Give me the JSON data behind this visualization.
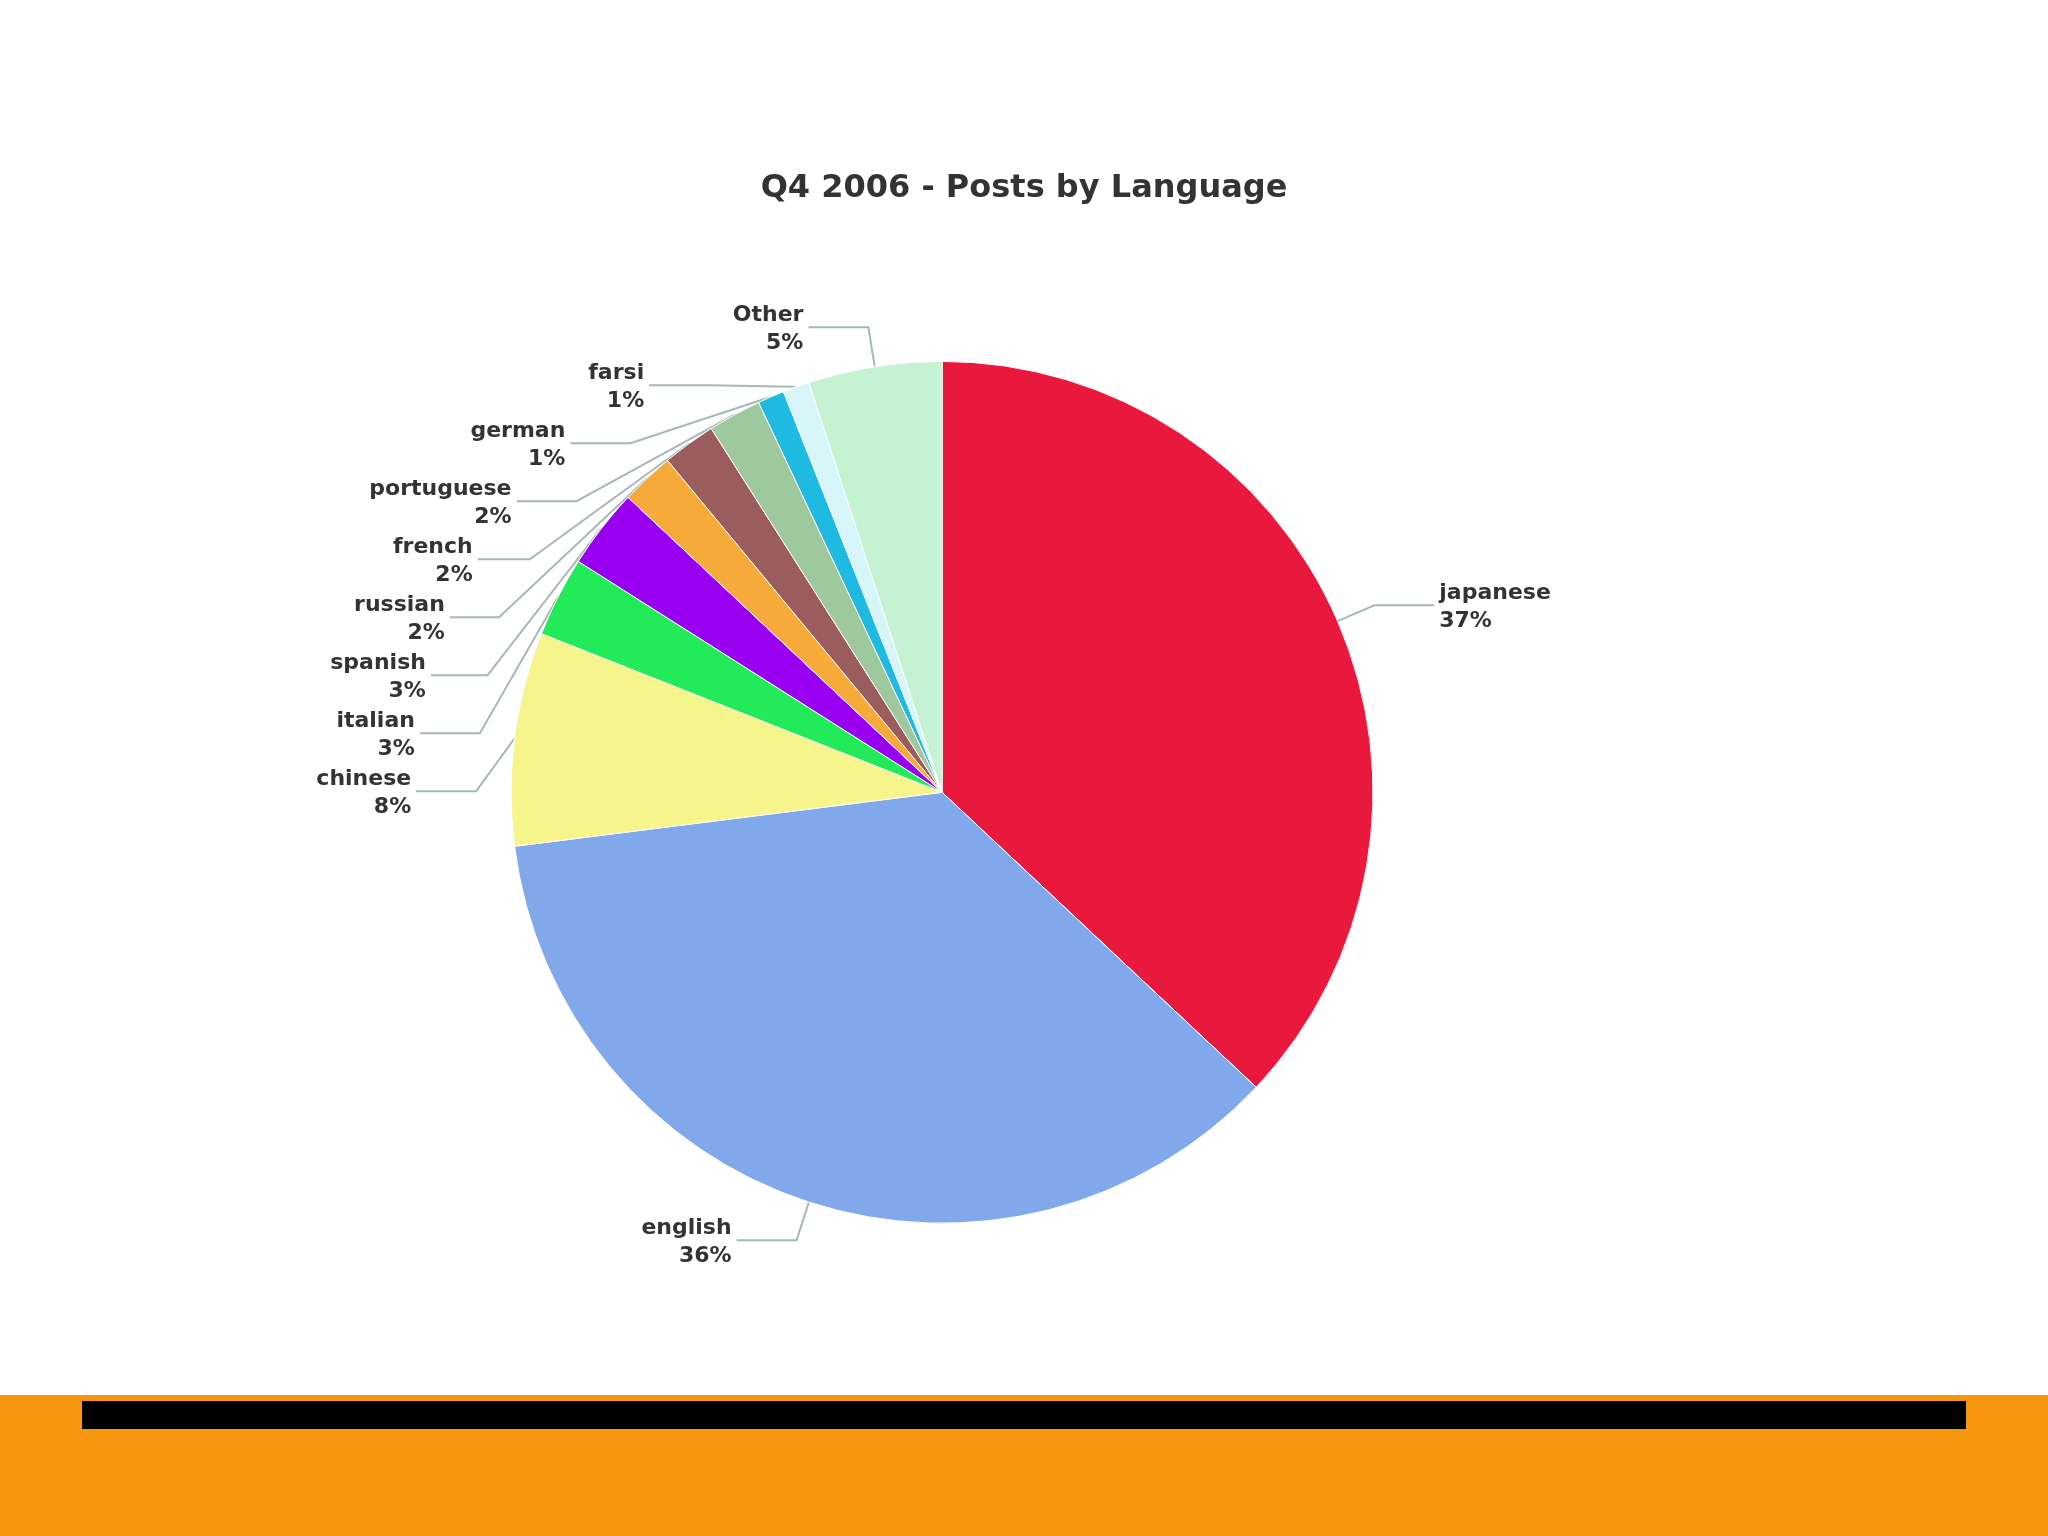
{
  "chart_data": {
    "type": "pie",
    "title": "Q4 2006 - Posts by Language",
    "categories": [
      "japanese",
      "english",
      "chinese",
      "italian",
      "spanish",
      "russian",
      "french",
      "portuguese",
      "german",
      "farsi",
      "Other"
    ],
    "values": [
      37,
      36,
      8,
      3,
      3,
      2,
      2,
      2,
      1,
      1,
      5
    ],
    "value_labels": [
      "37%",
      "36%",
      "8%",
      "3%",
      "3%",
      "2%",
      "2%",
      "2%",
      "1%",
      "1%",
      "5%"
    ],
    "colors": [
      "#e8193c",
      "#80a8ea",
      "#f5f58c",
      "#22ea58",
      "#9a00f0",
      "#f5aa3a",
      "#9a5c5c",
      "#9ec89e",
      "#1fbae2",
      "#d8f6fa",
      "#c4f2d2"
    ]
  }
}
